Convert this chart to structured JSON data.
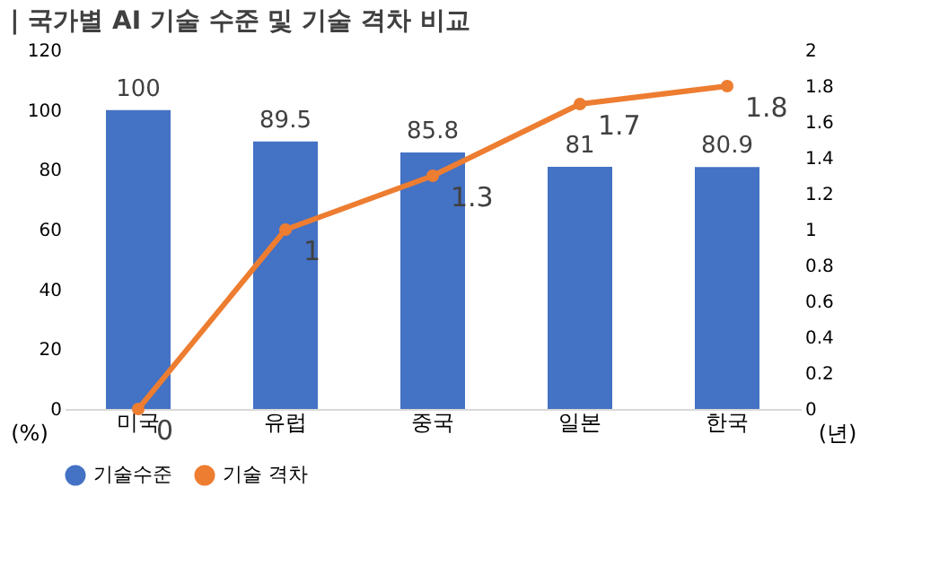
{
  "chart_data": {
    "type": "bar",
    "title": "| 국가별 AI 기술 수준 및 기술 격차 비교",
    "categories": [
      "미국",
      "유럽",
      "중국",
      "일본",
      "한국"
    ],
    "series": [
      {
        "name": "기술수준",
        "color": "#4472c4",
        "values": [
          100,
          89.5,
          85.8,
          81,
          80.9
        ]
      },
      {
        "name": "기술 격차",
        "type": "line",
        "axis": "y2",
        "color": "#ed7d31",
        "values": [
          0,
          1,
          1.3,
          1.7,
          1.8
        ]
      }
    ],
    "ylabel": "(%)",
    "y2label": "(년)",
    "ylim": [
      0,
      120
    ],
    "yticks": [
      0,
      20,
      40,
      60,
      80,
      100,
      120
    ],
    "y2lim": [
      0,
      2
    ],
    "y2ticks": [
      0,
      0.2,
      0.4,
      0.6,
      0.8,
      1,
      1.2,
      1.4,
      1.6,
      1.8,
      2
    ],
    "data_labels": true,
    "legend": "bottom",
    "marker": "circle",
    "grid": false
  }
}
